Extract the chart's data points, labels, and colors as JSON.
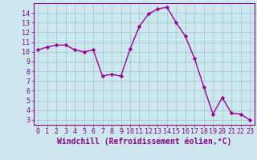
{
  "hours": [
    0,
    1,
    2,
    3,
    4,
    5,
    6,
    7,
    8,
    9,
    10,
    11,
    12,
    13,
    14,
    15,
    16,
    17,
    18,
    19,
    20,
    21,
    22,
    23
  ],
  "values": [
    10.2,
    10.5,
    10.7,
    10.7,
    10.2,
    10.0,
    10.2,
    7.5,
    7.7,
    7.5,
    10.3,
    12.6,
    13.9,
    14.4,
    14.6,
    13.0,
    11.6,
    9.3,
    6.4,
    3.6,
    5.3,
    3.7,
    3.6,
    3.0
  ],
  "line_color": "#990099",
  "marker": "D",
  "marker_size": 2.2,
  "bg_color": "#cce8ee",
  "grid_color": "#aacccc",
  "xlabel": "Windchill (Refroidissement éolien,°C)",
  "xlim": [
    -0.5,
    23.5
  ],
  "ylim": [
    2.5,
    15.0
  ],
  "yticks": [
    3,
    4,
    5,
    6,
    7,
    8,
    9,
    10,
    11,
    12,
    13,
    14
  ],
  "xticks": [
    0,
    1,
    2,
    3,
    4,
    5,
    6,
    7,
    8,
    9,
    10,
    11,
    12,
    13,
    14,
    15,
    16,
    17,
    18,
    19,
    20,
    21,
    22,
    23
  ],
  "tick_fontsize": 6.0,
  "xlabel_fontsize": 7.0,
  "spine_color": "#880088",
  "line_width": 1.0
}
